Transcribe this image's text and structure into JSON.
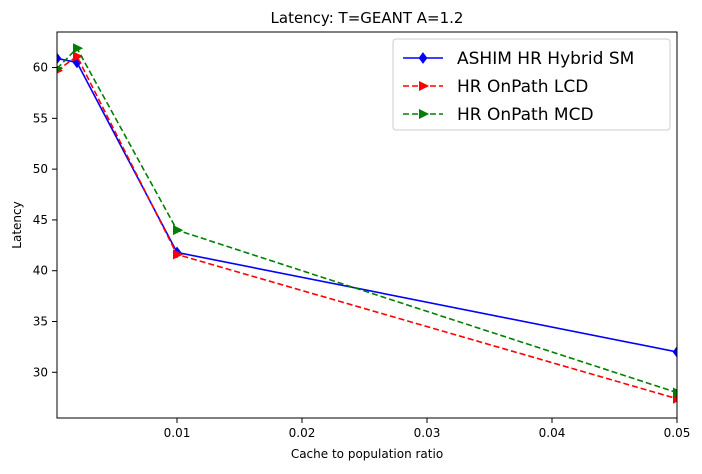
{
  "chart_data": {
    "type": "line",
    "title": "Latency: T=GEANT A=1.2",
    "xlabel": "Cache to population ratio",
    "ylabel": "Latency",
    "xlim": [
      0.0004,
      0.05
    ],
    "ylim": [
      25.5,
      63.5
    ],
    "xticks": [
      0.01,
      0.02,
      0.03,
      0.04,
      0.05
    ],
    "xtick_labels": [
      "0.01",
      "0.02",
      "0.03",
      "0.04",
      "0.05"
    ],
    "yticks": [
      30,
      35,
      40,
      45,
      50,
      55,
      60
    ],
    "ytick_labels": [
      "30",
      "35",
      "40",
      "45",
      "50",
      "55",
      "60"
    ],
    "grid": false,
    "legend_position": "top-right",
    "x": [
      0.0004,
      0.002,
      0.01,
      0.05
    ],
    "series": [
      {
        "name": "ASHIM HR Hybrid SM",
        "values": [
          60.9,
          60.5,
          41.8,
          32.0
        ],
        "color": "#0000ff",
        "linestyle": "solid",
        "marker": "diamond"
      },
      {
        "name": "HR OnPath LCD",
        "values": [
          59.7,
          61.1,
          41.6,
          27.4
        ],
        "color": "#ff0000",
        "linestyle": "dashed",
        "marker": "triangle-right"
      },
      {
        "name": "HR OnPath MCD",
        "values": [
          59.9,
          61.9,
          44.0,
          28.0
        ],
        "color": "#008000",
        "linestyle": "dashed",
        "marker": "triangle-right"
      }
    ]
  }
}
